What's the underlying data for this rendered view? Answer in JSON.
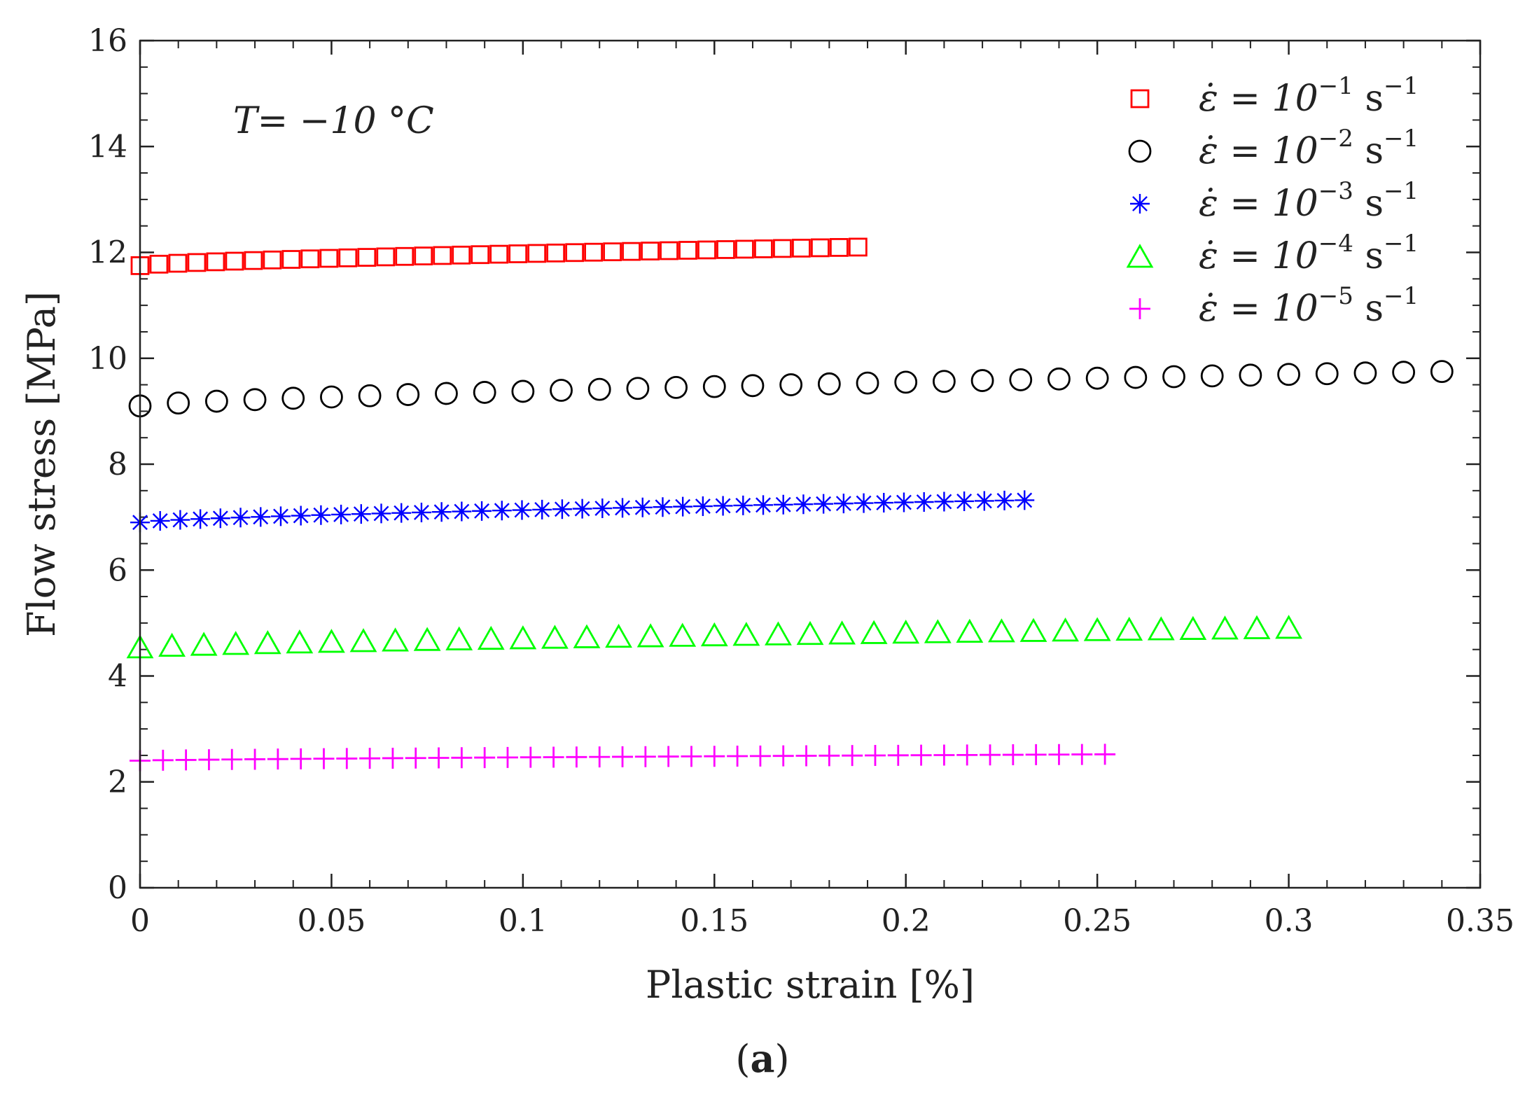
{
  "chart_data": {
    "type": "scatter",
    "xlabel": "Plastic strain [%]",
    "ylabel": "Flow stress [MPa]",
    "xlim": [
      0,
      0.35
    ],
    "ylim": [
      0,
      16
    ],
    "xticks": [
      0,
      0.05,
      0.1,
      0.15,
      0.2,
      0.25,
      0.3,
      0.35
    ],
    "xtick_labels": [
      "0",
      "0.05",
      "0.1",
      "0.15",
      "0.2",
      "0.25",
      "0.3",
      "0.35"
    ],
    "yticks": [
      0,
      2,
      4,
      6,
      8,
      10,
      12,
      14,
      16
    ],
    "ytick_labels": [
      "0",
      "2",
      "4",
      "6",
      "8",
      "10",
      "12",
      "14",
      "16"
    ],
    "grid": false,
    "legend_position": "top-right",
    "annotation": "T= −10 °C",
    "series": [
      {
        "name": "ε̇ = 10⁻¹ s⁻¹",
        "base": "ε̇ = 10",
        "exp": "−1",
        "unit": "s",
        "unit_exp": "−1",
        "marker": "square",
        "color": "#ff0000",
        "x_start": 0,
        "x_end": 0.1875,
        "count": 39,
        "y_start": 11.75,
        "y_end": 12.1
      },
      {
        "name": "ε̇ = 10⁻² s⁻¹",
        "base": "ε̇ = 10",
        "exp": "−2",
        "unit": "s",
        "unit_exp": "−1",
        "marker": "circle",
        "color": "#000000",
        "x_start": 0,
        "x_end": 0.34,
        "count": 35,
        "y_start": 9.1,
        "y_end": 9.75
      },
      {
        "name": "ε̇ = 10⁻³ s⁻¹",
        "base": "ε̇ = 10",
        "exp": "−3",
        "unit": "s",
        "unit_exp": "−1",
        "marker": "asterisk",
        "color": "#0000ff",
        "x_start": 0,
        "x_end": 0.231,
        "count": 45,
        "y_start": 6.9,
        "y_end": 7.32
      },
      {
        "name": "ε̇ = 10⁻⁴ s⁻¹",
        "base": "ε̇ = 10",
        "exp": "−4",
        "unit": "s",
        "unit_exp": "−1",
        "marker": "triangle",
        "color": "#00ff00",
        "x_start": 0,
        "x_end": 0.3,
        "count": 37,
        "y_start": 4.55,
        "y_end": 4.92
      },
      {
        "name": "ε̇ = 10⁻⁵ s⁻¹",
        "base": "ε̇ = 10",
        "exp": "−5",
        "unit": "s",
        "unit_exp": "−1",
        "marker": "plus",
        "color": "#ff00ff",
        "x_start": 0,
        "x_end": 0.252,
        "count": 43,
        "y_start": 2.4,
        "y_end": 2.52
      }
    ]
  },
  "caption": {
    "open": "(",
    "label": "a",
    "close": ")"
  }
}
